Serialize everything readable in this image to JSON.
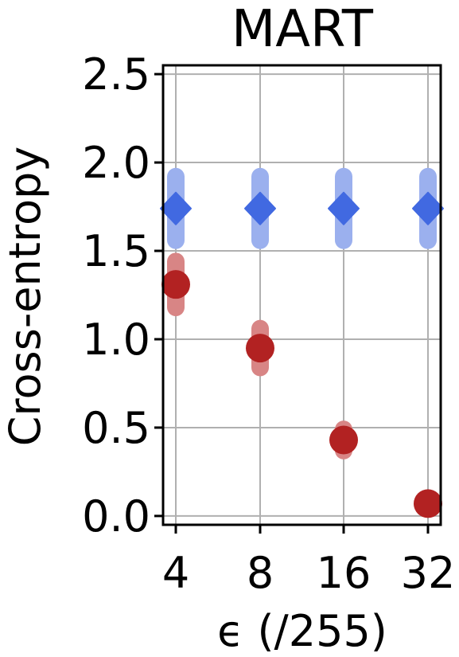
{
  "chart_data": {
    "type": "scatter",
    "title": "MART",
    "xlabel": "ϵ (/255)",
    "ylabel": "Cross-entropy",
    "categories": [
      "4",
      "8",
      "16",
      "32"
    ],
    "ylim": [
      -0.05,
      2.55
    ],
    "yticks": [
      "0.0",
      "0.5",
      "1.0",
      "1.5",
      "2.0",
      "2.5"
    ],
    "grid": true,
    "legend": "none",
    "series": [
      {
        "marker": "diamond",
        "color": "#4169e1",
        "error_color": "#9bb0ee",
        "values": [
          1.74,
          1.74,
          1.74,
          1.74
        ],
        "errors": [
          0.18,
          0.18,
          0.18,
          0.18
        ]
      },
      {
        "marker": "circle",
        "color": "#b22222",
        "error_color": "#d88585",
        "values": [
          1.31,
          0.95,
          0.43,
          0.07
        ],
        "errors": [
          0.13,
          0.11,
          0.06,
          0.02
        ]
      }
    ]
  }
}
